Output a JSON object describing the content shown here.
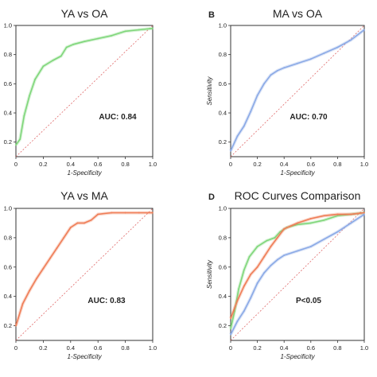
{
  "chart_data": [
    {
      "type": "line",
      "panel_label": "",
      "title": "YA vs OA",
      "xlabel": "1-Specificity",
      "ylabel": "",
      "annotation": "AUC: 0.84",
      "xlim": [
        0,
        1
      ],
      "ylim": [
        0.1,
        1.0
      ],
      "x_ticks": [
        "0",
        "0.2",
        "0.4",
        "0.6",
        "0.8",
        "1.0"
      ],
      "y_ticks": [
        "0.2",
        "0.4",
        "0.6",
        "0.8",
        "1.0"
      ],
      "reference_line": "diagonal dashed",
      "series": [
        {
          "color": "#7fd67a",
          "x": [
            0,
            0.03,
            0.06,
            0.1,
            0.14,
            0.2,
            0.27,
            0.33,
            0.37,
            0.42,
            0.5,
            0.6,
            0.7,
            0.8,
            0.9,
            1.0
          ],
          "y": [
            0.18,
            0.22,
            0.38,
            0.52,
            0.63,
            0.72,
            0.76,
            0.79,
            0.85,
            0.87,
            0.89,
            0.91,
            0.93,
            0.96,
            0.97,
            0.98
          ]
        }
      ]
    },
    {
      "type": "line",
      "panel_label": "B",
      "title": "MA vs OA",
      "xlabel": "1-Specificity",
      "ylabel": "Sensitivity",
      "annotation": "AUC: 0.70",
      "xlim": [
        0,
        1
      ],
      "ylim": [
        0.1,
        1.0
      ],
      "x_ticks": [
        "0",
        "0.2",
        "0.4",
        "0.6",
        "0.8",
        "1.0"
      ],
      "y_ticks": [
        "0.2",
        "0.4",
        "0.6",
        "0.8",
        "1.0"
      ],
      "reference_line": "diagonal dashed",
      "series": [
        {
          "color": "#8aa9e6",
          "x": [
            0,
            0.05,
            0.1,
            0.15,
            0.2,
            0.25,
            0.3,
            0.35,
            0.4,
            0.5,
            0.6,
            0.7,
            0.8,
            0.9,
            1.0
          ],
          "y": [
            0.14,
            0.24,
            0.31,
            0.41,
            0.52,
            0.6,
            0.66,
            0.69,
            0.71,
            0.74,
            0.77,
            0.81,
            0.85,
            0.9,
            0.97
          ]
        }
      ]
    },
    {
      "type": "line",
      "panel_label": "",
      "title": "YA vs MA",
      "xlabel": "1-Specificity",
      "ylabel": "",
      "annotation": "AUC: 0.83",
      "xlim": [
        0,
        1
      ],
      "ylim": [
        0.1,
        1.0
      ],
      "x_ticks": [
        "0",
        "0.2",
        "0.4",
        "0.6",
        "0.8",
        "1.0"
      ],
      "y_ticks": [
        "0.2",
        "0.4",
        "0.6",
        "0.8",
        "1.0"
      ],
      "reference_line": "diagonal dashed",
      "series": [
        {
          "color": "#ef7d57",
          "x": [
            0,
            0.05,
            0.1,
            0.15,
            0.2,
            0.25,
            0.3,
            0.35,
            0.4,
            0.45,
            0.5,
            0.55,
            0.6,
            0.7,
            0.8,
            0.9,
            1.0
          ],
          "y": [
            0.2,
            0.35,
            0.44,
            0.52,
            0.59,
            0.66,
            0.73,
            0.8,
            0.87,
            0.9,
            0.9,
            0.92,
            0.96,
            0.97,
            0.97,
            0.97,
            0.97
          ]
        }
      ]
    },
    {
      "type": "line",
      "panel_label": "D",
      "title": "ROC Curves Comparison",
      "xlabel": "1-Specificity",
      "ylabel": "Sensitivity",
      "annotation": "P<0.05",
      "xlim": [
        0,
        1
      ],
      "ylim": [
        0.1,
        1.0
      ],
      "x_ticks": [
        "0",
        "0.2",
        "0.4",
        "0.6",
        "0.8",
        "1.0"
      ],
      "y_ticks": [
        "0.2",
        "0.4",
        "0.6",
        "0.8",
        "1.0"
      ],
      "reference_line": "diagonal dashed",
      "series": [
        {
          "color": "#7fd67a",
          "x": [
            0,
            0.03,
            0.06,
            0.1,
            0.14,
            0.2,
            0.27,
            0.33,
            0.37,
            0.42,
            0.5,
            0.6,
            0.7,
            0.8,
            0.9,
            1.0
          ],
          "y": [
            0.18,
            0.3,
            0.45,
            0.58,
            0.67,
            0.74,
            0.78,
            0.8,
            0.84,
            0.87,
            0.89,
            0.9,
            0.92,
            0.95,
            0.96,
            0.97
          ]
        },
        {
          "color": "#ef7d57",
          "x": [
            0,
            0.05,
            0.1,
            0.15,
            0.2,
            0.25,
            0.3,
            0.35,
            0.4,
            0.45,
            0.5,
            0.6,
            0.7,
            0.8,
            0.9,
            1.0
          ],
          "y": [
            0.25,
            0.37,
            0.47,
            0.55,
            0.6,
            0.67,
            0.74,
            0.8,
            0.86,
            0.88,
            0.9,
            0.93,
            0.95,
            0.96,
            0.96,
            0.97
          ]
        },
        {
          "color": "#8aa9e6",
          "x": [
            0,
            0.05,
            0.1,
            0.15,
            0.2,
            0.25,
            0.3,
            0.35,
            0.4,
            0.5,
            0.6,
            0.7,
            0.8,
            0.9,
            1.0
          ],
          "y": [
            0.14,
            0.23,
            0.3,
            0.39,
            0.49,
            0.56,
            0.61,
            0.65,
            0.68,
            0.71,
            0.74,
            0.79,
            0.84,
            0.9,
            0.96
          ]
        }
      ]
    }
  ]
}
